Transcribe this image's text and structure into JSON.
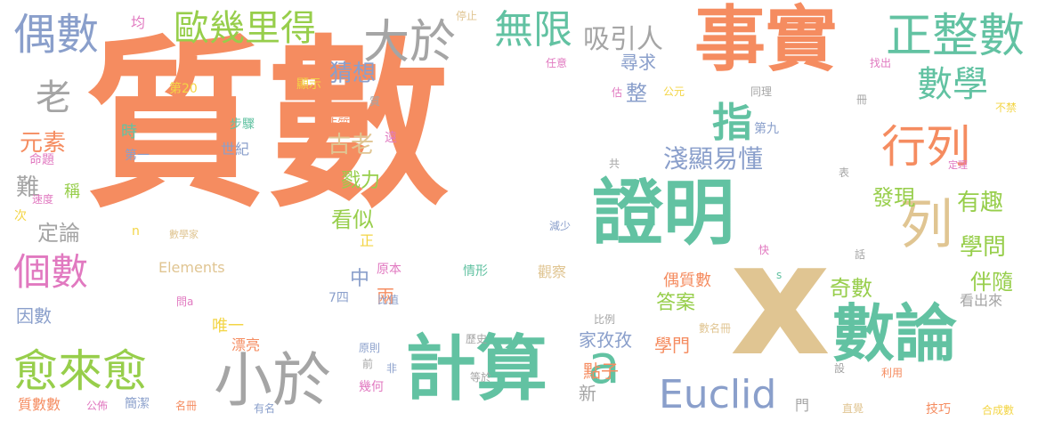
{
  "colors": {
    "orange": "#f58c60",
    "teal": "#62c2a2",
    "green": "#97ce4b",
    "gray": "#a5a5a5",
    "blue": "#8a9fcb",
    "pink": "#e179c0",
    "tan": "#e0c592",
    "yellow": "#f3d545",
    "background": "#ffffff"
  },
  "words": [
    {
      "id": "w0",
      "text": "質數",
      "color": "orange"
    },
    {
      "id": "w1",
      "text": "事實",
      "color": "orange"
    },
    {
      "id": "w2",
      "text": "x",
      "color": "tan"
    },
    {
      "id": "w3",
      "text": "數論",
      "color": "teal"
    },
    {
      "id": "w4",
      "text": "計算",
      "color": "teal"
    },
    {
      "id": "w5",
      "text": "證明",
      "color": "teal"
    },
    {
      "id": "w6",
      "text": "小於",
      "color": "gray"
    },
    {
      "id": "w7",
      "text": "愈來愈",
      "color": "green"
    },
    {
      "id": "w8",
      "text": "a",
      "color": "teal"
    },
    {
      "id": "w9",
      "text": "大於",
      "color": "gray"
    },
    {
      "id": "w10",
      "text": "正整數",
      "color": "teal"
    },
    {
      "id": "w11",
      "text": "數學",
      "color": "teal"
    },
    {
      "id": "w12",
      "text": "行列",
      "color": "orange"
    },
    {
      "id": "w13",
      "text": "列",
      "color": "tan"
    },
    {
      "id": "w14",
      "text": "Euclid",
      "color": "blue"
    },
    {
      "id": "w15",
      "text": "無限",
      "color": "teal"
    },
    {
      "id": "w16",
      "text": "歐幾里得",
      "color": "green"
    },
    {
      "id": "w17",
      "text": "偶數",
      "color": "blue"
    },
    {
      "id": "w18",
      "text": "個數",
      "color": "pink"
    },
    {
      "id": "w19",
      "text": "指",
      "color": "teal"
    },
    {
      "id": "w20",
      "text": "老",
      "color": "gray"
    },
    {
      "id": "w21",
      "text": "吸引人",
      "color": "gray"
    },
    {
      "id": "w22",
      "text": "淺顯易懂",
      "color": "blue"
    },
    {
      "id": "w23",
      "text": "有趣",
      "color": "green"
    },
    {
      "id": "w24",
      "text": "學問",
      "color": "green"
    },
    {
      "id": "w25",
      "text": "發現",
      "color": "green"
    },
    {
      "id": "w26",
      "text": "伴隨",
      "color": "green"
    },
    {
      "id": "w27",
      "text": "奇數",
      "color": "green"
    },
    {
      "id": "w28",
      "text": "元素",
      "color": "orange"
    },
    {
      "id": "w29",
      "text": "猜想",
      "color": "blue"
    },
    {
      "id": "w30",
      "text": "古老",
      "color": "tan"
    },
    {
      "id": "w31",
      "text": "戮力",
      "color": "green"
    },
    {
      "id": "w32",
      "text": "看似",
      "color": "green"
    },
    {
      "id": "w33",
      "text": "定論",
      "color": "gray"
    },
    {
      "id": "w34",
      "text": "難",
      "color": "gray"
    },
    {
      "id": "w35",
      "text": "稱",
      "color": "green"
    },
    {
      "id": "w36",
      "text": "尋求",
      "color": "blue"
    },
    {
      "id": "w37",
      "text": "答案",
      "color": "green"
    },
    {
      "id": "w38",
      "text": "家孜孜",
      "color": "blue"
    },
    {
      "id": "w39",
      "text": "學門",
      "color": "orange"
    },
    {
      "id": "w40",
      "text": "點子",
      "color": "orange"
    },
    {
      "id": "w41",
      "text": "偶質數",
      "color": "orange"
    },
    {
      "id": "w42",
      "text": "看出來",
      "color": "gray"
    },
    {
      "id": "w43",
      "text": "唯一",
      "color": "yellow"
    },
    {
      "id": "w44",
      "text": "漂亮",
      "color": "orange"
    },
    {
      "id": "w45",
      "text": "因數",
      "color": "blue"
    },
    {
      "id": "w46",
      "text": "質數數",
      "color": "orange"
    },
    {
      "id": "w47",
      "text": "簡潔",
      "color": "blue"
    },
    {
      "id": "w48",
      "text": "中",
      "color": "blue"
    },
    {
      "id": "w49",
      "text": "兩",
      "color": "orange"
    },
    {
      "id": "w50",
      "text": "整",
      "color": "blue"
    },
    {
      "id": "w51",
      "text": "時",
      "color": "teal"
    },
    {
      "id": "w52",
      "text": "世紀",
      "color": "blue"
    },
    {
      "id": "w53",
      "text": "第一",
      "color": "blue"
    },
    {
      "id": "w54",
      "text": "第九",
      "color": "blue"
    },
    {
      "id": "w55",
      "text": "步驟",
      "color": "teal"
    },
    {
      "id": "w56",
      "text": "均",
      "color": "pink"
    },
    {
      "id": "w57",
      "text": "停止",
      "color": "tan"
    },
    {
      "id": "w58",
      "text": "任意",
      "color": "pink"
    },
    {
      "id": "w59",
      "text": "第20",
      "color": "yellow"
    },
    {
      "id": "w60",
      "text": "顯示",
      "color": "yellow"
    },
    {
      "id": "w61",
      "text": "質",
      "color": "gray"
    },
    {
      "id": "w62",
      "text": "非質數",
      "color": "orange"
    },
    {
      "id": "w63",
      "text": "遠",
      "color": "pink"
    },
    {
      "id": "w64",
      "text": "命題",
      "color": "pink"
    },
    {
      "id": "w65",
      "text": "速度",
      "color": "pink"
    },
    {
      "id": "w66",
      "text": "次",
      "color": "yellow"
    },
    {
      "id": "w67",
      "text": "n",
      "color": "yellow"
    },
    {
      "id": "w68",
      "text": "數學家",
      "color": "tan"
    },
    {
      "id": "w69",
      "text": "Elements",
      "color": "tan"
    },
    {
      "id": "w70",
      "text": "情形",
      "color": "teal"
    },
    {
      "id": "w71",
      "text": "原本",
      "color": "pink"
    },
    {
      "id": "w72",
      "text": "比值",
      "color": "blue"
    },
    {
      "id": "w73",
      "text": "7四",
      "color": "blue"
    },
    {
      "id": "w74",
      "text": "問a",
      "color": "pink"
    },
    {
      "id": "w75",
      "text": "正",
      "color": "yellow"
    },
    {
      "id": "w76",
      "text": "觀察",
      "color": "tan"
    },
    {
      "id": "w77",
      "text": "比例",
      "color": "gray"
    },
    {
      "id": "w78",
      "text": "數名冊",
      "color": "tan"
    },
    {
      "id": "w79",
      "text": "原則",
      "color": "blue"
    },
    {
      "id": "w80",
      "text": "歷史",
      "color": "gray"
    },
    {
      "id": "w81",
      "text": "前",
      "color": "gray"
    },
    {
      "id": "w82",
      "text": "非",
      "color": "blue"
    },
    {
      "id": "w83",
      "text": "幾何",
      "color": "pink"
    },
    {
      "id": "w84",
      "text": "等於",
      "color": "gray"
    },
    {
      "id": "w85",
      "text": "新",
      "color": "gray"
    },
    {
      "id": "w86",
      "text": "門",
      "color": "gray"
    },
    {
      "id": "w87",
      "text": "設",
      "color": "gray"
    },
    {
      "id": "w88",
      "text": "利用",
      "color": "orange"
    },
    {
      "id": "w89",
      "text": "直覺",
      "color": "tan"
    },
    {
      "id": "w90",
      "text": "技巧",
      "color": "orange"
    },
    {
      "id": "w91",
      "text": "合成數",
      "color": "yellow"
    },
    {
      "id": "w92",
      "text": "名冊",
      "color": "orange"
    },
    {
      "id": "w93",
      "text": "公佈",
      "color": "pink"
    },
    {
      "id": "w94",
      "text": "有名",
      "color": "blue"
    },
    {
      "id": "w95",
      "text": "s",
      "color": "teal"
    },
    {
      "id": "w96",
      "text": "話",
      "color": "gray"
    },
    {
      "id": "w97",
      "text": "快",
      "color": "pink"
    },
    {
      "id": "w98",
      "text": "減少",
      "color": "blue"
    },
    {
      "id": "w99",
      "text": "共",
      "color": "gray"
    },
    {
      "id": "w100",
      "text": "表",
      "color": "gray"
    },
    {
      "id": "w101",
      "text": "定理",
      "color": "pink"
    },
    {
      "id": "w102",
      "text": "同理",
      "color": "gray"
    },
    {
      "id": "w103",
      "text": "找出",
      "color": "pink"
    },
    {
      "id": "w104",
      "text": "冊",
      "color": "gray"
    },
    {
      "id": "w105",
      "text": "不禁",
      "color": "yellow"
    },
    {
      "id": "w106",
      "text": "公元",
      "color": "yellow"
    },
    {
      "id": "w107",
      "text": "估",
      "color": "pink"
    }
  ]
}
